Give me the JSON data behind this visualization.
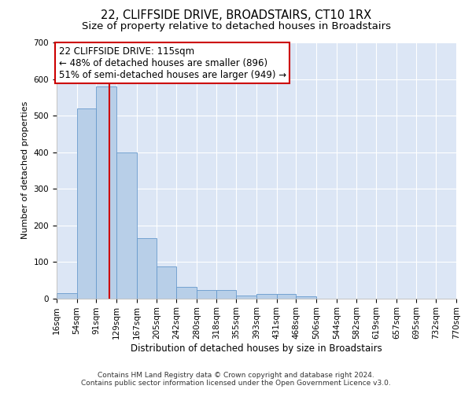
{
  "title": "22, CLIFFSIDE DRIVE, BROADSTAIRS, CT10 1RX",
  "subtitle": "Size of property relative to detached houses in Broadstairs",
  "xlabel": "Distribution of detached houses by size in Broadstairs",
  "ylabel": "Number of detached properties",
  "bar_color": "#b8cfe8",
  "bar_edge_color": "#6699cc",
  "background_color": "#dce6f5",
  "grid_color": "#ffffff",
  "vline_x": 115,
  "vline_color": "#cc0000",
  "bin_edges": [
    16,
    54,
    91,
    129,
    167,
    205,
    242,
    280,
    318,
    355,
    393,
    431,
    468,
    506,
    544,
    582,
    619,
    657,
    695,
    732,
    770
  ],
  "bin_labels": [
    "16sqm",
    "54sqm",
    "91sqm",
    "129sqm",
    "167sqm",
    "205sqm",
    "242sqm",
    "280sqm",
    "318sqm",
    "355sqm",
    "393sqm",
    "431sqm",
    "468sqm",
    "506sqm",
    "544sqm",
    "582sqm",
    "619sqm",
    "657sqm",
    "695sqm",
    "732sqm",
    "770sqm"
  ],
  "bar_heights": [
    15,
    520,
    580,
    400,
    165,
    88,
    32,
    22,
    22,
    8,
    12,
    12,
    5,
    0,
    0,
    0,
    0,
    0,
    0,
    0
  ],
  "ylim": [
    0,
    700
  ],
  "yticks": [
    0,
    100,
    200,
    300,
    400,
    500,
    600,
    700
  ],
  "annotation_line1": "22 CLIFFSIDE DRIVE: 115sqm",
  "annotation_line2": "← 48% of detached houses are smaller (896)",
  "annotation_line3": "51% of semi-detached houses are larger (949) →",
  "annotation_box_color": "#ffffff",
  "annotation_box_edge": "#cc0000",
  "footer_text": "Contains HM Land Registry data © Crown copyright and database right 2024.\nContains public sector information licensed under the Open Government Licence v3.0.",
  "title_fontsize": 10.5,
  "subtitle_fontsize": 9.5,
  "xlabel_fontsize": 8.5,
  "ylabel_fontsize": 8,
  "tick_fontsize": 7.5,
  "annotation_fontsize": 8.5,
  "footer_fontsize": 6.5
}
